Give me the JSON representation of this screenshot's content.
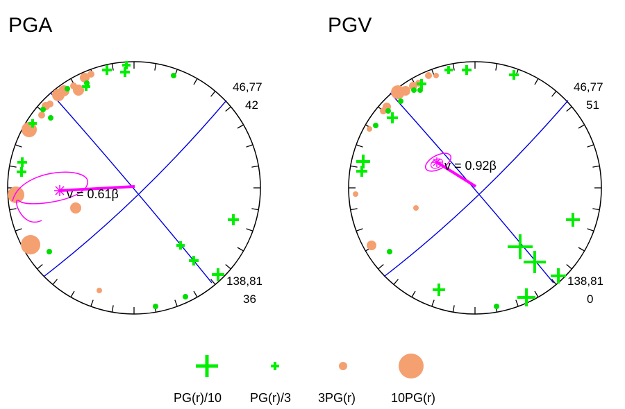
{
  "colors": {
    "plus": "#00ee00",
    "dot_green": "#00dd00",
    "circle_orange": "#f4a070",
    "rupture": "#ff00ff",
    "planes": "#0000dd",
    "frame": "#000000"
  },
  "panels": [
    {
      "title": "PGA",
      "plane1": {
        "label": "46,77",
        "value": "42"
      },
      "plane2": {
        "label": "138,81",
        "value": "36"
      },
      "velocity_text": "v = 0.61β"
    },
    {
      "title": "PGV",
      "plane1": {
        "label": "46,77",
        "value": "51"
      },
      "plane2": {
        "label": "138,81",
        "value": "0"
      },
      "velocity_text": "v = 0.92β"
    }
  ],
  "legend": {
    "items": [
      {
        "symbol": "plus-large",
        "label": "PG(r)/10"
      },
      {
        "symbol": "plus-small",
        "label": "PG(r)/3"
      },
      {
        "symbol": "circle-small",
        "label": "3PG(r)"
      },
      {
        "symbol": "circle-large",
        "label": "10PG(r)"
      }
    ]
  }
}
